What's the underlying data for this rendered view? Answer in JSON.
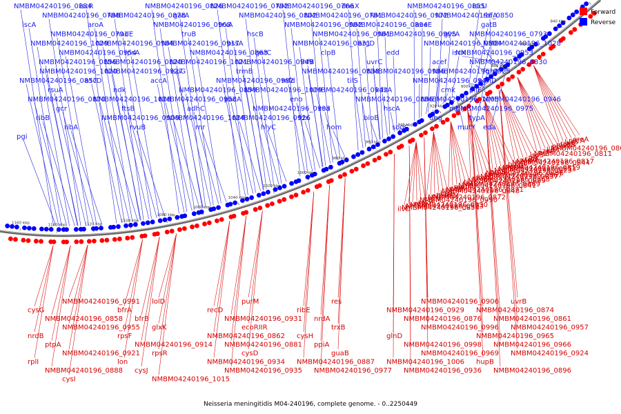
{
  "caption": "Neisseria meningitidis M04-240196, complete genome. - 0..2250449",
  "legend": [
    {
      "label": "Forward",
      "color": "#ff0000"
    },
    {
      "label": "Reverse",
      "color": "#0000ff"
    }
  ],
  "colors": {
    "forward": "#d40000",
    "reverse": "#1a1aee",
    "backbone": "#666666"
  },
  "scale_ticks": [
    "820 kbp",
    "840 kbp",
    "860 kbp",
    "880 kbp",
    "900 kbp",
    "920 kbp",
    "940 kbp",
    "960 kbp",
    "980 kbp",
    "1000 kbp",
    "1020 kbp",
    "1040 kbp",
    "1060 kbp",
    "1080 kbp",
    "1100 kbp",
    "1120 kbp",
    "1140 kbp",
    "1160 kbp"
  ],
  "reverse_labels": [
    "NMBM04240196_0884",
    "iscR",
    "NMBM04240196_0826",
    "NMBM04240196_0792",
    "NMBM04240196_0766",
    "dnaX",
    "NMBM04240196_0855",
    "iscU",
    "NMBM04240196_0788",
    "NMBM04240196_0878",
    "gatA",
    "NMBM04240196_0802",
    "NMBM04240196_0781",
    "NMBM04240196_0972",
    "NMBM04240196_0850",
    "rbfA",
    "iscA",
    "aroA",
    "NMBM04240196_0968",
    "trxA",
    "NMBM04240196_0962",
    "NMBM04240196_0894",
    "aceE",
    "gatB",
    "NMBM04240196_0791",
    "nadE",
    "truB",
    "hscB",
    "NMBM04240196_0961",
    "NMBM04240196_0905",
    "gyrA",
    "NMBM04240196_0793",
    "NMBM04240196_1029",
    "NMBM04240196_0964",
    "NMBM04240196_0917",
    "pssA",
    "NMBM04240196_0831",
    "argD",
    "NMBM04240196_0804",
    "NMBM04240196_1028",
    "NMBM04240196_0954",
    "rpsA",
    "NMBM04240196_0863",
    "gatC",
    "clpB",
    "edd",
    "iscX",
    "NMBM04240196_0953",
    "NMBM04240196_0856",
    "NMBM04240196_0820",
    "NMBM04240196_1021",
    "NMBM04240196_0949",
    "ihfB",
    "uvrC",
    "acef",
    "NMBM04240196_0830",
    "NMBM04240196_1020",
    "NMBM04240196_0927",
    "ispG",
    "trmB",
    "NMBM04240196_0838",
    "NMBM04240196_0986",
    "NMBM04240196_0925",
    "fghA",
    "NMBM04240196_0857",
    "ascD",
    "accA",
    "NMBM04240196_0982",
    "mfd",
    "tilS",
    "NMBM04240196_0947",
    "panD",
    "rsuA",
    "ndk",
    "NMBM04240196_0859",
    "NMBM04240196_1019",
    "NMBM04240196_0942",
    "kdsA",
    "cmk",
    "pilF",
    "NMBM04240196_0870",
    "NMBM04240196_1018",
    "NMBM04240196_0958",
    "pacA",
    "eno",
    "NMBM04240196_0886",
    "NMBM04240196_1005",
    "NMBM04240196_0946",
    "gcr",
    "ftsB",
    "adhC",
    "NMBM04240196_0993",
    "cca",
    "hscA",
    "mpl",
    "NMBM04240196_0975",
    "ribB",
    "NMBM04240196_0909",
    "NMBM04240196_1014",
    "NMBM04240196_0926",
    "fdx",
    "bioB",
    "ung",
    "typA",
    "ribA",
    "rvuB",
    "rnr",
    "hlyC",
    "hom",
    "sodC",
    "mutY",
    "eda",
    "pgi"
  ],
  "forward_labels": [
    "greA",
    "porA",
    "lysS",
    "ruvC",
    "msbB",
    "pepN",
    "NMBM04240196_0808",
    "lldA",
    "zwf",
    "pgl",
    "NMBM04240196_0811",
    "iscS",
    "glk",
    "clpX",
    "xseA",
    "NMBM04240196_0817",
    "NMBM04240196_0844",
    "pdxH",
    "suhB",
    "NMBM04240196_0819",
    "NMBM04240196_0853",
    "NMBM04240196_0823",
    "proS",
    "NMBM04240196_0836",
    "NMBM04240196_0867",
    "NMBM04240196_0837",
    "ftsK2",
    "NMBM04240196_0868",
    "NMBM04240196_0839",
    "tig",
    "NMBM04240196_0869",
    "NMBM04240196_0841",
    "mutM",
    "clpP",
    "NMBM04240196_0871",
    "NMBM04240196_0848",
    "hslR",
    "mltB",
    "ecoRIIM",
    "NMBM04240196_0872",
    "cysN",
    "NMBM04240196_0990",
    "recR",
    "rpe",
    "NMBM04240196_0930",
    "NMBM04240196_0903",
    "NMBM04240196_0854",
    "ilvD",
    "NMBM04240196_0991",
    "lolD",
    "purM",
    "res",
    "NMBM04240196_0906",
    "uvrB",
    "cysG",
    "bfrA",
    "recD",
    "ribE",
    "NMBM04240196_0929",
    "NMBM04240196_0874",
    "NMBM04240196_0858",
    "bfrB",
    "NMBM04240196_0931",
    "nrdA",
    "NMBM04240196_0876",
    "NMBM04240196_0861",
    "NMBM04240196_0955",
    "glxK",
    "ecoRIIR",
    "trxB",
    "NMBM04240196_0996",
    "NMBM04240196_0957",
    "nrdB",
    "rpsF",
    "NMBM04240196_0862",
    "cysH",
    "glnD",
    "NMBM04240196_0965",
    "ptpA",
    "NMBM04240196_0914",
    "NMBM04240196_0881",
    "ppiA",
    "NMBM04240196_0998",
    "NMBM04240196_0966",
    "NMBM04240196_0921",
    "rpsR",
    "cysD",
    "guaB",
    "NMBM04240196_0969",
    "NMBM04240196_0924",
    "rplI",
    "lon",
    "NMBM04240196_0934",
    "NMBM04240196_0887",
    "NMBM04240196_1006",
    "hupB",
    "NMBM04240196_0888",
    "cysJ",
    "NMBM04240196_0935",
    "NMBM04240196_0977",
    "NMBM04240196_0936",
    "NMBM04240196_0896",
    "cysI",
    "NMBM04240196_1015"
  ]
}
